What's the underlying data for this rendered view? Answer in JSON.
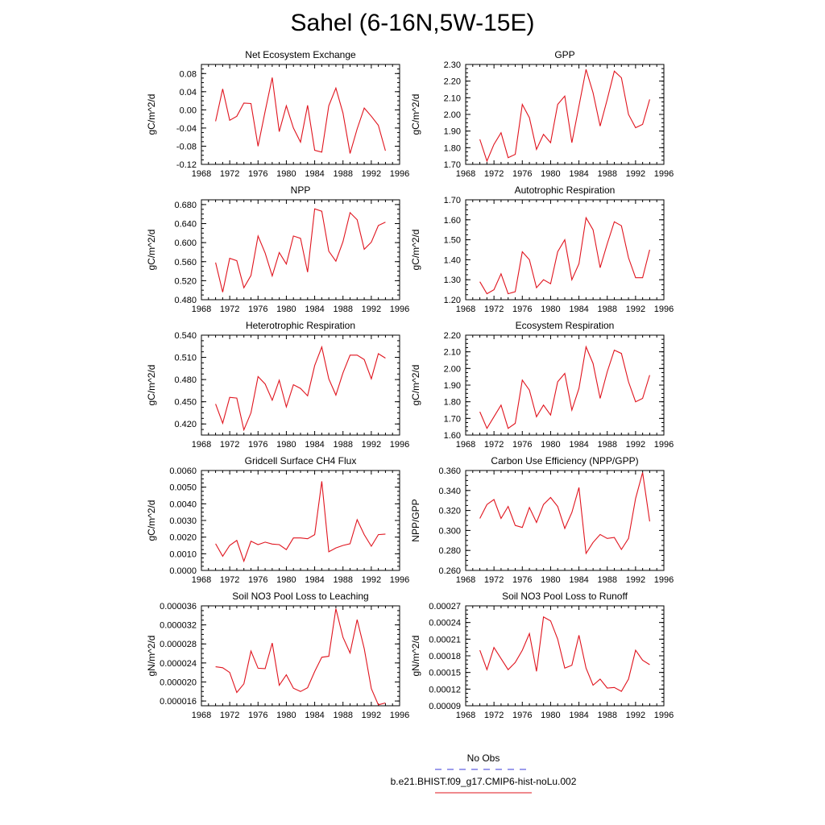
{
  "figure": {
    "title": "Sahel (6-16N,5W-15E)",
    "legend": [
      {
        "label": "No Obs",
        "color": "#3b3bd8",
        "dashed": true
      },
      {
        "label": "b.e21.BHIST.f09_g17.CMIP6-hist-noLu.002",
        "color": "#e0141e",
        "dashed": false
      }
    ]
  },
  "chart_data": [
    {
      "type": "line",
      "title": "Net Ecosystem Exchange",
      "ylabel": "gC/m^2/d",
      "xlim": [
        1968,
        1996
      ],
      "ylim": [
        -0.12,
        0.1
      ],
      "xticks": [
        "1968",
        "1972",
        "1976",
        "1980",
        "1984",
        "1988",
        "1992",
        "1996"
      ],
      "yticks": [
        "-0.12",
        "-0.08",
        "-0.04",
        "0.00",
        "0.04",
        "0.08"
      ],
      "color": "#e0141e",
      "x": [
        1970,
        1971,
        1972,
        1973,
        1974,
        1975,
        1976,
        1977,
        1978,
        1979,
        1980,
        1981,
        1982,
        1983,
        1984,
        1985,
        1986,
        1987,
        1988,
        1989,
        1990,
        1991,
        1992,
        1993,
        1994
      ],
      "y": [
        -0.025,
        0.046,
        -0.023,
        -0.014,
        0.015,
        0.014,
        -0.08,
        -0.003,
        0.071,
        -0.048,
        0.009,
        -0.04,
        -0.071,
        0.01,
        -0.089,
        -0.093,
        0.009,
        0.048,
        -0.007,
        -0.096,
        -0.042,
        0.004,
        -0.014,
        -0.034,
        -0.09
      ]
    },
    {
      "type": "line",
      "title": "GPP",
      "ylabel": "gC/m^2/d",
      "xlim": [
        1968,
        1996
      ],
      "ylim": [
        1.7,
        2.3
      ],
      "xticks": [
        "1968",
        "1972",
        "1976",
        "1980",
        "1984",
        "1988",
        "1992",
        "1996"
      ],
      "yticks": [
        "1.70",
        "1.80",
        "1.90",
        "2.00",
        "2.10",
        "2.20",
        "2.30"
      ],
      "color": "#e0141e",
      "x": [
        1970,
        1971,
        1972,
        1973,
        1974,
        1975,
        1976,
        1977,
        1978,
        1979,
        1980,
        1981,
        1982,
        1983,
        1984,
        1985,
        1986,
        1987,
        1988,
        1989,
        1990,
        1991,
        1992,
        1993,
        1994
      ],
      "y": [
        1.85,
        1.72,
        1.82,
        1.89,
        1.74,
        1.76,
        2.06,
        1.98,
        1.79,
        1.88,
        1.83,
        2.06,
        2.11,
        1.83,
        2.05,
        2.27,
        2.13,
        1.93,
        2.09,
        2.26,
        2.22,
        2.0,
        1.92,
        1.94,
        2.09
      ]
    },
    {
      "type": "line",
      "title": "NPP",
      "ylabel": "gC/m^2/d",
      "xlim": [
        1968,
        1996
      ],
      "ylim": [
        0.48,
        0.69
      ],
      "xticks": [
        "1968",
        "1972",
        "1976",
        "1980",
        "1984",
        "1988",
        "1992",
        "1996"
      ],
      "yticks": [
        "0.480",
        "0.520",
        "0.560",
        "0.600",
        "0.640",
        "0.680"
      ],
      "color": "#e0141e",
      "x": [
        1970,
        1971,
        1972,
        1973,
        1974,
        1975,
        1976,
        1977,
        1978,
        1979,
        1980,
        1981,
        1982,
        1983,
        1984,
        1985,
        1986,
        1987,
        1988,
        1989,
        1990,
        1991,
        1992,
        1993,
        1994
      ],
      "y": [
        0.558,
        0.496,
        0.567,
        0.562,
        0.505,
        0.531,
        0.614,
        0.578,
        0.53,
        0.579,
        0.555,
        0.614,
        0.609,
        0.538,
        0.671,
        0.666,
        0.582,
        0.561,
        0.602,
        0.663,
        0.648,
        0.586,
        0.601,
        0.636,
        0.643
      ]
    },
    {
      "type": "line",
      "title": "Autotrophic Respiration",
      "ylabel": "gC/m^2/d",
      "xlim": [
        1968,
        1996
      ],
      "ylim": [
        1.2,
        1.7
      ],
      "xticks": [
        "1968",
        "1972",
        "1976",
        "1980",
        "1984",
        "1988",
        "1992",
        "1996"
      ],
      "yticks": [
        "1.20",
        "1.30",
        "1.40",
        "1.50",
        "1.60",
        "1.70"
      ],
      "color": "#e0141e",
      "x": [
        1970,
        1971,
        1972,
        1973,
        1974,
        1975,
        1976,
        1977,
        1978,
        1979,
        1980,
        1981,
        1982,
        1983,
        1984,
        1985,
        1986,
        1987,
        1988,
        1989,
        1990,
        1991,
        1992,
        1993,
        1994
      ],
      "y": [
        1.29,
        1.23,
        1.25,
        1.33,
        1.23,
        1.24,
        1.44,
        1.4,
        1.26,
        1.3,
        1.28,
        1.44,
        1.5,
        1.3,
        1.38,
        1.61,
        1.55,
        1.36,
        1.48,
        1.59,
        1.57,
        1.41,
        1.31,
        1.31,
        1.45
      ]
    },
    {
      "type": "line",
      "title": "Heterotrophic Respiration",
      "ylabel": "gC/m^2/d",
      "xlim": [
        1968,
        1996
      ],
      "ylim": [
        0.405,
        0.54
      ],
      "xticks": [
        "1968",
        "1972",
        "1976",
        "1980",
        "1984",
        "1988",
        "1992",
        "1996"
      ],
      "yticks": [
        "0.420",
        "0.450",
        "0.480",
        "0.510",
        "0.540"
      ],
      "color": "#e0141e",
      "x": [
        1970,
        1971,
        1972,
        1973,
        1974,
        1975,
        1976,
        1977,
        1978,
        1979,
        1980,
        1981,
        1982,
        1983,
        1984,
        1985,
        1986,
        1987,
        1988,
        1989,
        1990,
        1991,
        1992,
        1993,
        1994
      ],
      "y": [
        0.447,
        0.421,
        0.456,
        0.455,
        0.412,
        0.435,
        0.484,
        0.474,
        0.452,
        0.479,
        0.443,
        0.473,
        0.468,
        0.458,
        0.499,
        0.524,
        0.481,
        0.459,
        0.489,
        0.513,
        0.513,
        0.507,
        0.481,
        0.515,
        0.509
      ]
    },
    {
      "type": "line",
      "title": "Ecosystem Respiration",
      "ylabel": "gC/m^2/d",
      "xlim": [
        1968,
        1996
      ],
      "ylim": [
        1.6,
        2.2
      ],
      "xticks": [
        "1968",
        "1972",
        "1976",
        "1980",
        "1984",
        "1988",
        "1992",
        "1996"
      ],
      "yticks": [
        "1.60",
        "1.70",
        "1.80",
        "1.90",
        "2.00",
        "2.10",
        "2.20"
      ],
      "color": "#e0141e",
      "x": [
        1970,
        1971,
        1972,
        1973,
        1974,
        1975,
        1976,
        1977,
        1978,
        1979,
        1980,
        1981,
        1982,
        1983,
        1984,
        1985,
        1986,
        1987,
        1988,
        1989,
        1990,
        1991,
        1992,
        1993,
        1994
      ],
      "y": [
        1.74,
        1.64,
        1.71,
        1.78,
        1.64,
        1.67,
        1.93,
        1.87,
        1.71,
        1.78,
        1.72,
        1.92,
        1.97,
        1.75,
        1.88,
        2.13,
        2.03,
        1.82,
        1.98,
        2.11,
        2.09,
        1.92,
        1.8,
        1.82,
        1.96
      ]
    },
    {
      "type": "line",
      "title": "Gridcell Surface CH4 Flux",
      "ylabel": "gC/m^2/d",
      "xlim": [
        1968,
        1996
      ],
      "ylim": [
        0.0,
        0.006
      ],
      "xticks": [
        "1968",
        "1972",
        "1976",
        "1980",
        "1984",
        "1988",
        "1992",
        "1996"
      ],
      "yticks": [
        "0.0000",
        "0.0010",
        "0.0020",
        "0.0030",
        "0.0040",
        "0.0050",
        "0.0060"
      ],
      "color": "#e0141e",
      "x": [
        1970,
        1971,
        1972,
        1973,
        1974,
        1975,
        1976,
        1977,
        1978,
        1979,
        1980,
        1981,
        1982,
        1983,
        1984,
        1985,
        1986,
        1987,
        1988,
        1989,
        1990,
        1991,
        1992,
        1993,
        1994
      ],
      "y": [
        0.0016,
        0.00085,
        0.0015,
        0.0018,
        0.00055,
        0.00175,
        0.00155,
        0.0017,
        0.00158,
        0.00155,
        0.00125,
        0.00195,
        0.00195,
        0.0019,
        0.00215,
        0.00535,
        0.00112,
        0.00135,
        0.0015,
        0.0016,
        0.00305,
        0.00215,
        0.00145,
        0.00215,
        0.00218
      ]
    },
    {
      "type": "line",
      "title": "Carbon Use Efficiency (NPP/GPP)",
      "ylabel": "NPP/GPP",
      "xlim": [
        1968,
        1996
      ],
      "ylim": [
        0.26,
        0.36
      ],
      "xticks": [
        "1968",
        "1972",
        "1976",
        "1980",
        "1984",
        "1988",
        "1992",
        "1996"
      ],
      "yticks": [
        "0.260",
        "0.280",
        "0.300",
        "0.320",
        "0.340",
        "0.360"
      ],
      "color": "#e0141e",
      "x": [
        1970,
        1971,
        1972,
        1973,
        1974,
        1975,
        1976,
        1977,
        1978,
        1979,
        1980,
        1981,
        1982,
        1983,
        1984,
        1985,
        1986,
        1987,
        1988,
        1989,
        1990,
        1991,
        1992,
        1993,
        1994
      ],
      "y": [
        0.312,
        0.326,
        0.331,
        0.312,
        0.324,
        0.305,
        0.303,
        0.323,
        0.308,
        0.326,
        0.333,
        0.324,
        0.302,
        0.318,
        0.343,
        0.277,
        0.288,
        0.296,
        0.292,
        0.293,
        0.281,
        0.292,
        0.332,
        0.358,
        0.309
      ]
    },
    {
      "type": "line",
      "title": "Soil NO3 Pool Loss to Leaching",
      "ylabel": "gN/m^2/d",
      "xlim": [
        1968,
        1996
      ],
      "ylim": [
        1.5e-05,
        3.6e-05
      ],
      "xticks": [
        "1968",
        "1972",
        "1976",
        "1980",
        "1984",
        "1988",
        "1992",
        "1996"
      ],
      "yticks": [
        "0.000016",
        "0.000020",
        "0.000024",
        "0.000028",
        "0.000032",
        "0.000036"
      ],
      "color": "#e0141e",
      "x": [
        1970,
        1971,
        1972,
        1973,
        1974,
        1975,
        1976,
        1977,
        1978,
        1979,
        1980,
        1981,
        1982,
        1983,
        1984,
        1985,
        1986,
        1987,
        1988,
        1989,
        1990,
        1991,
        1992,
        1993,
        1994
      ],
      "y": [
        2.32e-05,
        2.3e-05,
        2.2e-05,
        1.78e-05,
        1.96e-05,
        2.65e-05,
        2.29e-05,
        2.28e-05,
        2.82e-05,
        1.93e-05,
        2.15e-05,
        1.87e-05,
        1.8e-05,
        1.88e-05,
        2.22e-05,
        2.52e-05,
        2.54e-05,
        3.54e-05,
        2.94e-05,
        2.61e-05,
        3.31e-05,
        2.7e-05,
        1.86e-05,
        1.52e-05,
        1.56e-05
      ]
    },
    {
      "type": "line",
      "title": "Soil NO3 Pool Loss to Runoff",
      "ylabel": "gN/m^2/d",
      "xlim": [
        1968,
        1996
      ],
      "ylim": [
        9e-05,
        0.00027
      ],
      "xticks": [
        "1968",
        "1972",
        "1976",
        "1980",
        "1984",
        "1988",
        "1992",
        "1996"
      ],
      "yticks": [
        "0.00009",
        "0.00012",
        "0.00015",
        "0.00018",
        "0.00021",
        "0.00024",
        "0.00027"
      ],
      "color": "#e0141e",
      "x": [
        1970,
        1971,
        1972,
        1973,
        1974,
        1975,
        1976,
        1977,
        1978,
        1979,
        1980,
        1981,
        1982,
        1983,
        1984,
        1985,
        1986,
        1987,
        1988,
        1989,
        1990,
        1991,
        1992,
        1993,
        1994
      ],
      "y": [
        0.00019,
        0.000155,
        0.000195,
        0.000175,
        0.000155,
        0.000168,
        0.00019,
        0.00022,
        0.000152,
        0.00025,
        0.000243,
        0.00021,
        0.000158,
        0.000163,
        0.000217,
        0.000158,
        0.000127,
        0.000138,
        0.000122,
        0.000123,
        0.000116,
        0.000138,
        0.00019,
        0.000172,
        0.000164
      ]
    }
  ]
}
